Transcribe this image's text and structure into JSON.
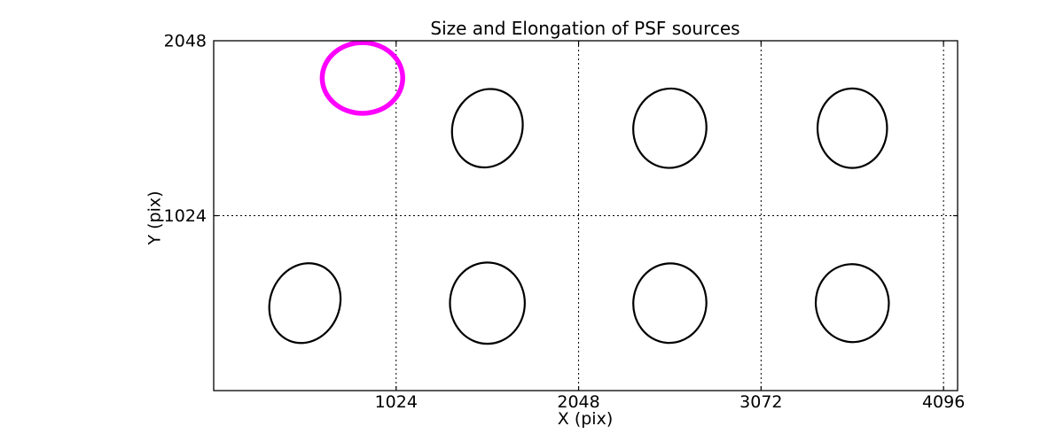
{
  "chart_data": {
    "type": "scatter",
    "title": "Size and Elongation of PSF sources",
    "xlabel": "X (pix)",
    "ylabel": "Y (pix)",
    "xlim": [
      0,
      4175
    ],
    "ylim": [
      0,
      2048
    ],
    "x_ticks": [
      1024,
      2048,
      3072,
      4096
    ],
    "y_ticks": [
      1024,
      2048
    ],
    "grid": "dotted",
    "grid_color": "#000000",
    "axes_color": "#000000",
    "background_color": "#ffffff",
    "flagged_color": "#ff00ff",
    "normal_color": "#000000",
    "sources": [
      {
        "x": 835,
        "y": 1830,
        "semi_x": 226,
        "semi_y": 207,
        "rotation_deg": 0,
        "color": "#ff00ff",
        "linewidth": 5.5,
        "flagged": true
      },
      {
        "x": 1536,
        "y": 1536,
        "semi_x": 195,
        "semi_y": 233,
        "rotation_deg": 20,
        "color": "#000000",
        "linewidth": 2.2,
        "flagged": false
      },
      {
        "x": 2560,
        "y": 1536,
        "semi_x": 205,
        "semi_y": 233,
        "rotation_deg": 8,
        "color": "#000000",
        "linewidth": 2.2,
        "flagged": false
      },
      {
        "x": 3584,
        "y": 1536,
        "semi_x": 195,
        "semi_y": 233,
        "rotation_deg": 0,
        "color": "#000000",
        "linewidth": 2.2,
        "flagged": false
      },
      {
        "x": 512,
        "y": 512,
        "semi_x": 195,
        "semi_y": 238,
        "rotation_deg": 22,
        "color": "#000000",
        "linewidth": 2.2,
        "flagged": false
      },
      {
        "x": 1536,
        "y": 512,
        "semi_x": 210,
        "semi_y": 238,
        "rotation_deg": 0,
        "color": "#000000",
        "linewidth": 2.2,
        "flagged": false
      },
      {
        "x": 2560,
        "y": 512,
        "semi_x": 205,
        "semi_y": 233,
        "rotation_deg": 5,
        "color": "#000000",
        "linewidth": 2.2,
        "flagged": false
      },
      {
        "x": 3584,
        "y": 512,
        "semi_x": 205,
        "semi_y": 228,
        "rotation_deg": -5,
        "color": "#000000",
        "linewidth": 2.2,
        "flagged": false
      }
    ]
  }
}
